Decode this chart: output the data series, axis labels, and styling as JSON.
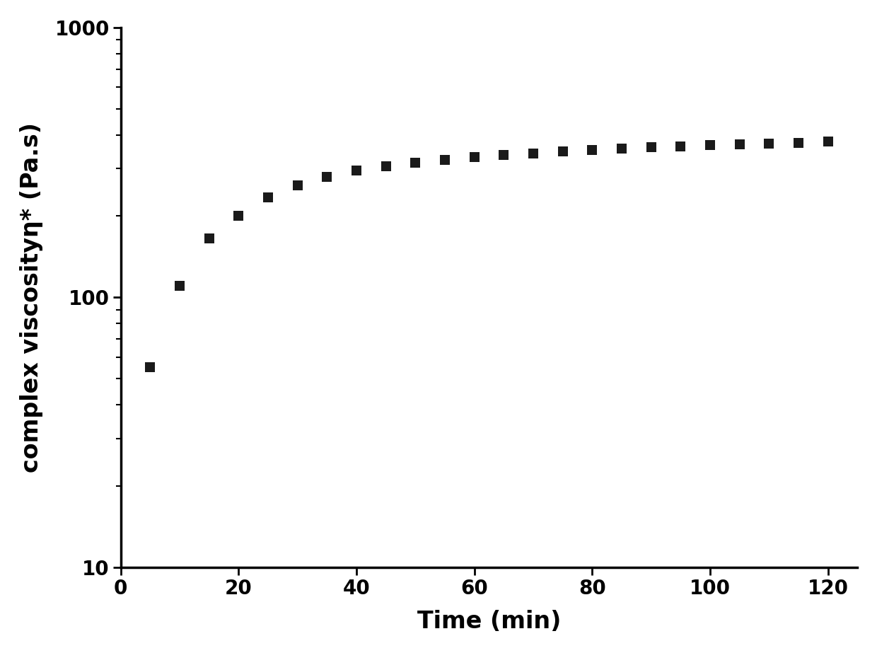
{
  "x": [
    5,
    10,
    15,
    20,
    25,
    30,
    35,
    40,
    45,
    50,
    55,
    60,
    65,
    70,
    75,
    80,
    85,
    90,
    95,
    100,
    105,
    110,
    115,
    120
  ],
  "y": [
    55,
    110,
    165,
    200,
    235,
    260,
    280,
    295,
    305,
    315,
    322,
    330,
    337,
    342,
    347,
    352,
    356,
    360,
    363,
    366,
    369,
    372,
    374,
    377
  ],
  "marker": "s",
  "marker_color": "#1a1a1a",
  "marker_size": 10,
  "xlabel": "Time (min)",
  "ylabel": "complex viscosityη* (Pa.s)",
  "xlim": [
    0,
    125
  ],
  "ylim": [
    10,
    1000
  ],
  "xticks": [
    0,
    20,
    40,
    60,
    80,
    100,
    120
  ],
  "background_color": "#ffffff",
  "tick_labelsize": 20,
  "label_fontsize": 24,
  "linewidth_axes": 2.5
}
